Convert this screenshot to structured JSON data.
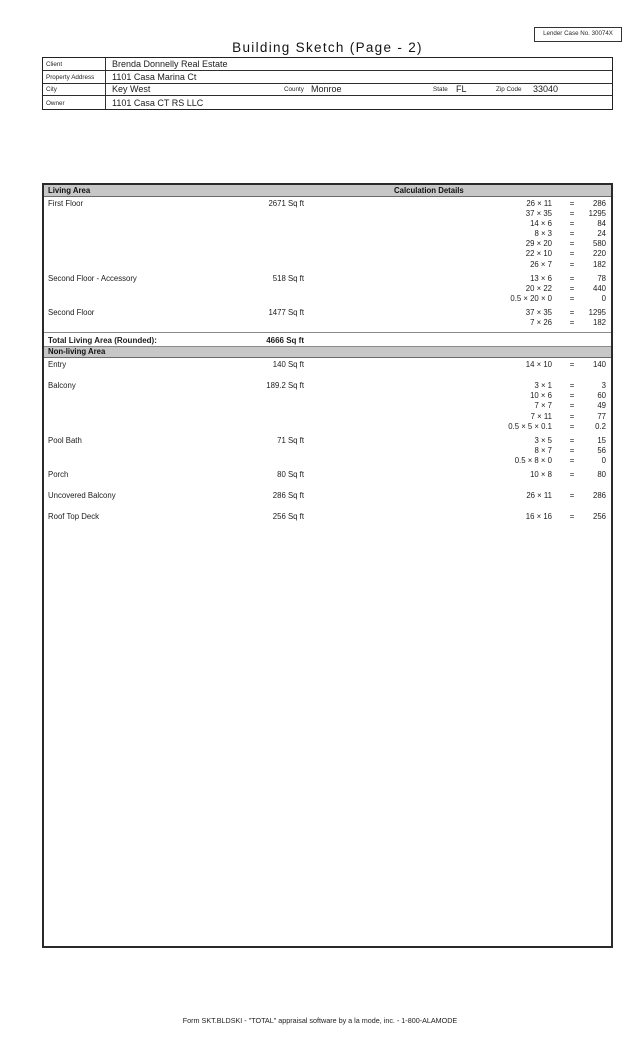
{
  "header": {
    "lender_case": "Lender Case No. 30074X",
    "title": "Building Sketch (Page - 2)"
  },
  "property_info": {
    "client_label": "Client",
    "client": "Brenda Donnelly Real Estate",
    "address_label": "Property Address",
    "address": "1101 Casa Marina Ct",
    "city_label": "City",
    "city": "Key West",
    "county_label": "County",
    "county": "Monroe",
    "state_label": "State",
    "state": "FL",
    "zip_label": "Zip Code",
    "zip": "33040",
    "owner_label": "Owner",
    "owner": "1101 Casa CT RS LLC"
  },
  "sketch": {
    "living_header": "Living Area",
    "calc_header": "Calculation Details",
    "total_label": "Total Living Area (Rounded):",
    "total_area": "4666 Sq ft",
    "nonliving_header": "Non-living Area",
    "equals_symbol": "=",
    "living_groups": [
      {
        "name": "First Floor",
        "area": "2671 Sq ft",
        "calcs": [
          {
            "expr": "26 × 11",
            "result": "286"
          },
          {
            "expr": "37 × 35",
            "result": "1295"
          },
          {
            "expr": "14 × 6",
            "result": "84"
          },
          {
            "expr": "8 × 3",
            "result": "24"
          },
          {
            "expr": "29 × 20",
            "result": "580"
          },
          {
            "expr": "22 × 10",
            "result": "220"
          },
          {
            "expr": "26 × 7",
            "result": "182"
          }
        ]
      },
      {
        "name": "Second Floor - Accessory",
        "area": "518 Sq ft",
        "calcs": [
          {
            "expr": "13 × 6",
            "result": "78"
          },
          {
            "expr": "20 × 22",
            "result": "440"
          },
          {
            "expr": "0.5 × 20 × 0",
            "result": "0"
          }
        ]
      },
      {
        "name": "Second Floor",
        "area": "1477 Sq ft",
        "calcs": [
          {
            "expr": "37 × 35",
            "result": "1295"
          },
          {
            "expr": "7 × 26",
            "result": "182"
          }
        ]
      }
    ],
    "nonliving_groups": [
      {
        "name": "Entry",
        "area": "140 Sq ft",
        "calcs": [
          {
            "expr": "14 × 10",
            "result": "140"
          }
        ]
      },
      {
        "name": "Balcony",
        "area": "189.2 Sq ft",
        "calcs": [
          {
            "expr": "3 × 1",
            "result": "3"
          },
          {
            "expr": "10 × 6",
            "result": "60"
          },
          {
            "expr": "7 × 7",
            "result": "49"
          },
          {
            "expr": "7 × 11",
            "result": "77"
          },
          {
            "expr": "0.5 × 5 × 0.1",
            "result": "0.2"
          }
        ]
      },
      {
        "name": "Pool Bath",
        "area": "71 Sq ft",
        "calcs": [
          {
            "expr": "3 × 5",
            "result": "15"
          },
          {
            "expr": "8 × 7",
            "result": "56"
          },
          {
            "expr": "0.5 × 8 × 0",
            "result": "0"
          }
        ]
      },
      {
        "name": "Porch",
        "area": "80 Sq ft",
        "calcs": [
          {
            "expr": "10 × 8",
            "result": "80"
          }
        ]
      },
      {
        "name": "Uncovered Balcony",
        "area": "286 Sq ft",
        "calcs": [
          {
            "expr": "26 × 11",
            "result": "286"
          }
        ]
      },
      {
        "name": "Roof Top Deck",
        "area": "256 Sq ft",
        "calcs": [
          {
            "expr": "16 × 16",
            "result": "256"
          }
        ]
      }
    ]
  },
  "footer": {
    "text": "Form SKT.BLDSKI - \"TOTAL\" appraisal software by a la mode, inc. - 1-800-ALAMODE"
  }
}
